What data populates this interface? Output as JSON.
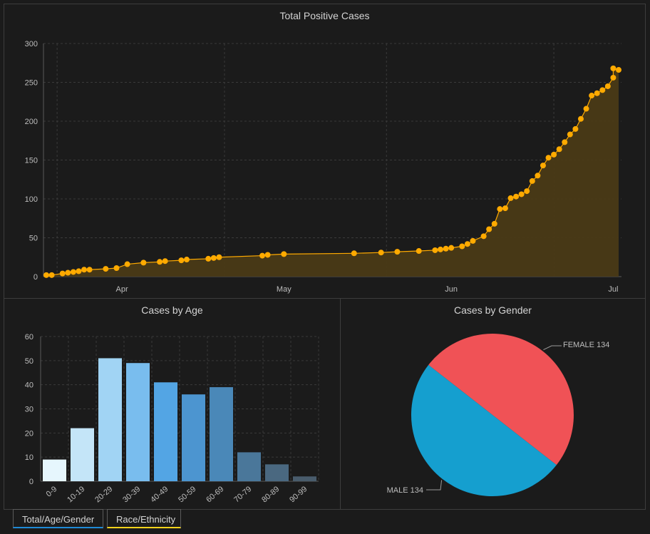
{
  "colors": {
    "background": "#1b1b1b",
    "line": "#ffaa00",
    "area": "#4a3a16",
    "female": "#f05256",
    "male": "#159fcf",
    "tab_total_underline": "#1f8ad6",
    "tab_race_underline": "#f5d31c"
  },
  "tabs": [
    {
      "label": "Total/Age/Gender",
      "active": true
    },
    {
      "label": "Race/Ethnicity",
      "active": false
    }
  ],
  "chart_data": [
    {
      "type": "area",
      "title": "Total Positive Cases",
      "xlabel": "",
      "ylabel": "",
      "ylim": [
        0,
        300
      ],
      "yticks": [
        0,
        50,
        100,
        150,
        200,
        250,
        300
      ],
      "xticks": [
        {
          "label": "Apr",
          "date": "2020-04-01"
        },
        {
          "label": "May",
          "date": "2020-05-01"
        },
        {
          "label": "Jun",
          "date": "2020-06-01"
        },
        {
          "label": "Jul",
          "date": "2020-07-01"
        }
      ],
      "xlim": [
        "2020-03-18",
        "2020-07-02"
      ],
      "grid": true,
      "points": [
        [
          "2020-03-18",
          2
        ],
        [
          "2020-03-19",
          2
        ],
        [
          "2020-03-21",
          4
        ],
        [
          "2020-03-22",
          5
        ],
        [
          "2020-03-23",
          6
        ],
        [
          "2020-03-24",
          7
        ],
        [
          "2020-03-25",
          9
        ],
        [
          "2020-03-26",
          9
        ],
        [
          "2020-03-29",
          10
        ],
        [
          "2020-03-31",
          11
        ],
        [
          "2020-04-02",
          16
        ],
        [
          "2020-04-05",
          18
        ],
        [
          "2020-04-08",
          19
        ],
        [
          "2020-04-09",
          20
        ],
        [
          "2020-04-12",
          21
        ],
        [
          "2020-04-13",
          22
        ],
        [
          "2020-04-17",
          23
        ],
        [
          "2020-04-18",
          24
        ],
        [
          "2020-04-19",
          25
        ],
        [
          "2020-04-27",
          27
        ],
        [
          "2020-04-28",
          28
        ],
        [
          "2020-05-01",
          29
        ],
        [
          "2020-05-14",
          30
        ],
        [
          "2020-05-19",
          31
        ],
        [
          "2020-05-22",
          32
        ],
        [
          "2020-05-26",
          33
        ],
        [
          "2020-05-29",
          34
        ],
        [
          "2020-05-30",
          35
        ],
        [
          "2020-05-31",
          36
        ],
        [
          "2020-06-01",
          37
        ],
        [
          "2020-06-03",
          39
        ],
        [
          "2020-06-04",
          42
        ],
        [
          "2020-06-05",
          46
        ],
        [
          "2020-06-07",
          52
        ],
        [
          "2020-06-08",
          61
        ],
        [
          "2020-06-09",
          68
        ],
        [
          "2020-06-10",
          87
        ],
        [
          "2020-06-11",
          88
        ],
        [
          "2020-06-12",
          101
        ],
        [
          "2020-06-13",
          103
        ],
        [
          "2020-06-14",
          106
        ],
        [
          "2020-06-15",
          110
        ],
        [
          "2020-06-16",
          123
        ],
        [
          "2020-06-17",
          130
        ],
        [
          "2020-06-18",
          143
        ],
        [
          "2020-06-19",
          153
        ],
        [
          "2020-06-20",
          157
        ],
        [
          "2020-06-21",
          164
        ],
        [
          "2020-06-22",
          173
        ],
        [
          "2020-06-23",
          183
        ],
        [
          "2020-06-24",
          190
        ],
        [
          "2020-06-25",
          203
        ],
        [
          "2020-06-26",
          216
        ],
        [
          "2020-06-27",
          233
        ],
        [
          "2020-06-28",
          236
        ],
        [
          "2020-06-29",
          240
        ],
        [
          "2020-06-30",
          245
        ],
        [
          "2020-07-01",
          256
        ],
        [
          "2020-07-01",
          268
        ],
        [
          "2020-07-02",
          266
        ]
      ]
    },
    {
      "type": "bar",
      "title": "Cases by Age",
      "xlabel": "",
      "ylabel": "",
      "ylim": [
        0,
        60
      ],
      "yticks": [
        0,
        10,
        20,
        30,
        40,
        50,
        60
      ],
      "grid": true,
      "categories": [
        "0-9",
        "10-19",
        "20-29",
        "30-39",
        "40-49",
        "50-59",
        "60-69",
        "70-79",
        "80-89",
        "90-99"
      ],
      "values": [
        9,
        22,
        51,
        49,
        41,
        36,
        39,
        12,
        7,
        2
      ],
      "colors": [
        "#e6f6fd",
        "#c4e5f8",
        "#a1d4f4",
        "#79bdee",
        "#53a5e4",
        "#4c95d0",
        "#4a88b8",
        "#4a779a",
        "#4a6880",
        "#495c6c"
      ]
    },
    {
      "type": "pie",
      "title": "Cases by Gender",
      "slices": [
        {
          "label": "FEMALE 134",
          "value": 134,
          "color": "#f05256"
        },
        {
          "label": "MALE 134",
          "value": 134,
          "color": "#159fcf"
        }
      ]
    }
  ]
}
